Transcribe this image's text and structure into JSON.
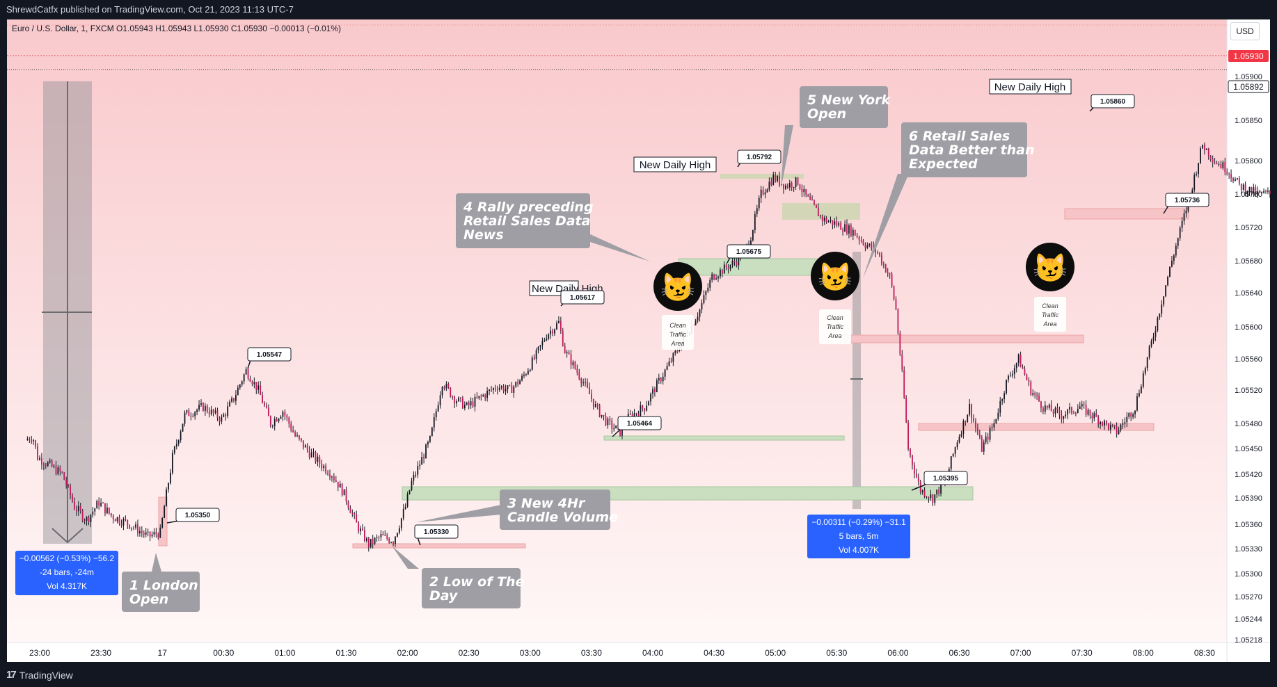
{
  "header": {
    "publish_line": "ShrewdCatfx published on TradingView.com, Oct 21, 2023 11:13 UTC-7"
  },
  "legend": {
    "symbol_line": "Euro / U.S. Dollar, 1, FXCM  O1.05943  H1.05943  L1.05930  C1.05930  −0.00013 (−0.01%)"
  },
  "currency_button": "USD",
  "footer": {
    "brand": "TradingView"
  },
  "chart_data": {
    "type": "candlestick",
    "symbol": "EURUSD",
    "price_axis": {
      "ticks": [
        "1.05900",
        "1.05850",
        "1.05800",
        "1.05760",
        "1.05720",
        "1.05680",
        "1.05640",
        "1.05600",
        "1.05560",
        "1.05520",
        "1.05480",
        "1.05450",
        "1.05420",
        "1.05390",
        "1.05360",
        "1.05330",
        "1.05300",
        "1.05270",
        "1.05244",
        "1.05218"
      ],
      "current_price_label": "1.05930",
      "last_price_label": "1.05892",
      "ylim": [
        1.0521,
        1.0594
      ]
    },
    "time_axis": {
      "ticks": [
        "23:00",
        "23:30",
        "17",
        "00:30",
        "01:00",
        "01:30",
        "02:00",
        "02:30",
        "03:00",
        "03:30",
        "04:00",
        "04:30",
        "05:00",
        "05:30",
        "06:00",
        "06:30",
        "07:00",
        "07:30",
        "08:00",
        "08:30"
      ]
    },
    "price_path": [
      [
        22.9,
        1.0546
      ],
      [
        22.96,
        1.05465
      ],
      [
        23.0,
        1.0544
      ],
      [
        23.1,
        1.0543
      ],
      [
        23.2,
        1.0542
      ],
      [
        23.3,
        1.0538
      ],
      [
        23.4,
        1.05365
      ],
      [
        23.5,
        1.05385
      ],
      [
        23.6,
        1.0537
      ],
      [
        23.75,
        1.0536
      ],
      [
        23.9,
        1.05345
      ],
      [
        24.0,
        1.0535
      ],
      [
        24.1,
        1.0544
      ],
      [
        24.2,
        1.0549
      ],
      [
        24.35,
        1.055
      ],
      [
        24.5,
        1.05485
      ],
      [
        24.6,
        1.0551
      ],
      [
        24.7,
        1.05545
      ],
      [
        24.8,
        1.0552
      ],
      [
        24.9,
        1.0548
      ],
      [
        25.0,
        1.05495
      ],
      [
        25.1,
        1.05465
      ],
      [
        25.25,
        1.0544
      ],
      [
        25.4,
        1.0542
      ],
      [
        25.5,
        1.05395
      ],
      [
        25.6,
        1.0536
      ],
      [
        25.7,
        1.05335
      ],
      [
        25.8,
        1.05345
      ],
      [
        25.9,
        1.0534
      ],
      [
        26.0,
        1.0538
      ],
      [
        26.05,
        1.0541
      ],
      [
        26.2,
        1.0546
      ],
      [
        26.3,
        1.0553
      ],
      [
        26.4,
        1.0551
      ],
      [
        26.5,
        1.055
      ],
      [
        26.6,
        1.0551
      ],
      [
        26.75,
        1.05525
      ],
      [
        26.85,
        1.0552
      ],
      [
        26.95,
        1.05535
      ],
      [
        27.05,
        1.0556
      ],
      [
        27.15,
        1.0559
      ],
      [
        27.25,
        1.05605
      ],
      [
        27.3,
        1.0557
      ],
      [
        27.45,
        1.0553
      ],
      [
        27.55,
        1.055
      ],
      [
        27.65,
        1.0548
      ],
      [
        27.75,
        1.0547
      ],
      [
        27.8,
        1.05485
      ],
      [
        27.95,
        1.055
      ],
      [
        28.1,
        1.0554
      ],
      [
        28.25,
        1.0558
      ],
      [
        28.4,
        1.0562
      ],
      [
        28.5,
        1.0566
      ],
      [
        28.6,
        1.0567
      ],
      [
        28.7,
        1.0568
      ],
      [
        28.8,
        1.057
      ],
      [
        28.9,
        1.0576
      ],
      [
        29.0,
        1.0578
      ],
      [
        29.1,
        1.0577
      ],
      [
        29.2,
        1.05775
      ],
      [
        29.25,
        1.0576
      ],
      [
        29.4,
        1.0573
      ],
      [
        29.5,
        1.05725
      ],
      [
        29.65,
        1.05715
      ],
      [
        29.75,
        1.057
      ],
      [
        29.85,
        1.0569
      ],
      [
        29.95,
        1.0566
      ],
      [
        30.0,
        1.0562
      ],
      [
        30.05,
        1.0554
      ],
      [
        30.1,
        1.0545
      ],
      [
        30.2,
        1.054
      ],
      [
        30.3,
        1.0539
      ],
      [
        30.4,
        1.0541
      ],
      [
        30.5,
        1.0546
      ],
      [
        30.6,
        1.055
      ],
      [
        30.7,
        1.0545
      ],
      [
        30.8,
        1.0548
      ],
      [
        30.9,
        1.0553
      ],
      [
        31.0,
        1.0556
      ],
      [
        31.1,
        1.0552
      ],
      [
        31.2,
        1.055
      ],
      [
        31.35,
        1.0549
      ],
      [
        31.5,
        1.055
      ],
      [
        31.65,
        1.05485
      ],
      [
        31.8,
        1.0547
      ],
      [
        31.95,
        1.055
      ],
      [
        32.05,
        1.0556
      ],
      [
        32.15,
        1.0562
      ],
      [
        32.25,
        1.0568
      ],
      [
        32.4,
        1.0576
      ],
      [
        32.5,
        1.0582
      ],
      [
        32.6,
        1.058
      ],
      [
        32.7,
        1.0579
      ],
      [
        32.8,
        1.0577
      ],
      [
        32.95,
        1.0576
      ],
      [
        33.05,
        1.0576
      ],
      [
        33.15,
        1.0579
      ],
      [
        33.25,
        1.0583
      ],
      [
        33.3,
        1.0587
      ],
      [
        33.4,
        1.0585
      ],
      [
        33.5,
        1.058
      ],
      [
        33.6,
        1.0582
      ],
      [
        33.75,
        1.0585
      ],
      [
        33.85,
        1.0588
      ],
      [
        33.9,
        1.0586
      ],
      [
        34.0,
        1.0586
      ],
      [
        34.05,
        1.0588
      ],
      [
        34.1,
        1.05893
      ]
    ]
  },
  "price_tags": [
    {
      "label": "1.05547"
    },
    {
      "label": "1.05350"
    },
    {
      "label": "1.05330"
    },
    {
      "label": "1.05617"
    },
    {
      "label": "1.05464"
    },
    {
      "label": "1.05792"
    },
    {
      "label": "1.05675"
    },
    {
      "label": "1.05395"
    },
    {
      "label": "1.05860"
    },
    {
      "label": "1.05736"
    }
  ],
  "daily_high_labels": [
    "New Daily High",
    "New Daily High",
    "New Daily High"
  ],
  "callouts": [
    {
      "id": "1",
      "lines": [
        "1 London",
        "Open"
      ]
    },
    {
      "id": "2",
      "lines": [
        "2 Low of The",
        "Day"
      ]
    },
    {
      "id": "3",
      "lines": [
        "3 New 4Hr",
        "Candle Volume"
      ]
    },
    {
      "id": "4",
      "lines": [
        "4 Rally preceding",
        "Retail Sales Data",
        "News"
      ]
    },
    {
      "id": "5",
      "lines": [
        "5 New York",
        "Open"
      ]
    },
    {
      "id": "6",
      "lines": [
        "6 Retail Sales",
        "Data Better than",
        "Expected"
      ]
    }
  ],
  "measure_boxes": [
    {
      "lines": [
        "−0.00562 (−0.53%) −56.2",
        "-24 bars, -24m",
        "Vol 4.317K"
      ]
    },
    {
      "lines": [
        "−0.00311 (−0.29%) −31.1",
        "5 bars, 5m",
        "Vol 4.007K"
      ]
    }
  ],
  "traffic_labels": [
    {
      "lines": [
        "Clean",
        "Traffic",
        "Area"
      ]
    },
    {
      "lines": [
        "Clean",
        "Traffic",
        "Area"
      ]
    },
    {
      "lines": [
        "Clean",
        "Traffic",
        "Area"
      ]
    }
  ],
  "colors": {
    "bg_top": "#f9c9cc",
    "bg_bottom": "#fff6f6",
    "callout": "#9e9ea4",
    "measure": "#2962ff",
    "green_zone": "#c9dfc0",
    "red_zone": "#f6c4c6",
    "olive_zone": "#d4d6b8",
    "cat": "#f5c542"
  }
}
